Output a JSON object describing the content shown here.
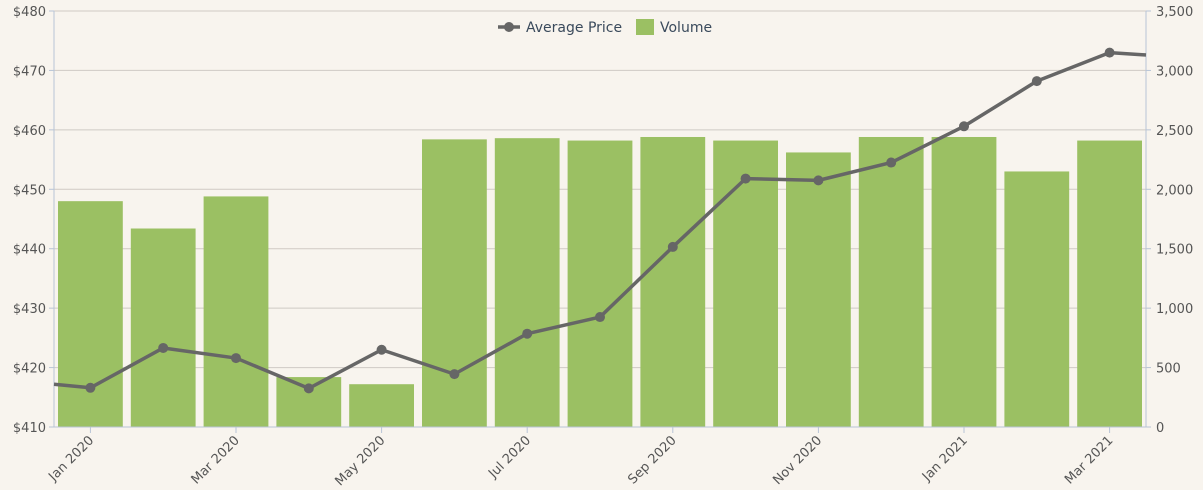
{
  "chart_data": {
    "type": "bar+line",
    "title": "",
    "legend": {
      "placement": "top-center",
      "items": [
        {
          "name": "Average Price",
          "kind": "line",
          "color": "#666666"
        },
        {
          "name": "Volume",
          "kind": "bar",
          "color": "#9bc063"
        }
      ]
    },
    "x": {
      "categories": [
        "Jan 2020",
        "Feb 2020",
        "Mar 2020",
        "Apr 2020",
        "May 2020",
        "Jun 2020",
        "Jul 2020",
        "Aug 2020",
        "Sep 2020",
        "Oct 2020",
        "Nov 2020",
        "Dec 2020",
        "Jan 2021",
        "Feb 2021",
        "Mar 2021"
      ],
      "tick_labels": [
        "Jan 2020",
        "Mar 2020",
        "May 2020",
        "Jul 2020",
        "Sep 2020",
        "Nov 2020",
        "Jan 2021",
        "Mar 2021"
      ]
    },
    "y_left": {
      "label": "",
      "range": [
        410,
        480
      ],
      "ticks": [
        "$410",
        "$420",
        "$430",
        "$440",
        "$450",
        "$460",
        "$470",
        "$480"
      ]
    },
    "y_right": {
      "label": "",
      "range": [
        0,
        3500
      ],
      "ticks": [
        "0",
        "500",
        "1,000",
        "1,500",
        "2,000",
        "2,500",
        "3,000",
        "3,500"
      ]
    },
    "grid": true,
    "series": [
      {
        "name": "Volume",
        "type": "bar",
        "axis": "right",
        "color": "#9bc063",
        "values": [
          1900,
          1670,
          1940,
          420,
          360,
          2420,
          2430,
          2410,
          2440,
          2410,
          2310,
          2440,
          2440,
          2150,
          2410
        ]
      },
      {
        "name": "Average Price",
        "type": "line",
        "axis": "left",
        "color": "#666666",
        "values": [
          416.6,
          423.3,
          421.6,
          416.5,
          423.0,
          418.9,
          425.7,
          428.5,
          440.3,
          451.8,
          451.5,
          454.5,
          460.6,
          468.2,
          473.0
        ],
        "continues_left_to": 417.2,
        "continues_right_to": 472.6
      }
    ]
  }
}
